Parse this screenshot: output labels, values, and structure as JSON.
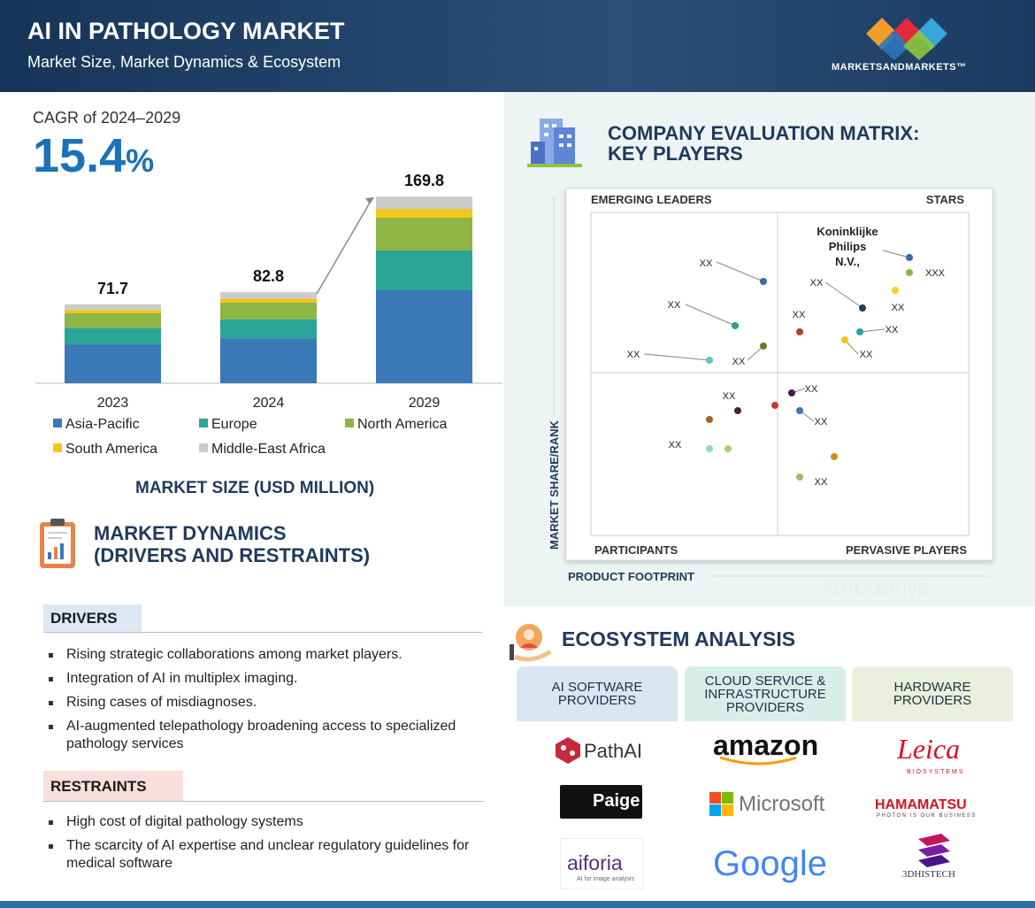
{
  "header": {
    "title": "AI IN PATHOLOGY MARKET",
    "subtitle": "Market Size, Market Dynamics & Ecosystem",
    "brand": "MARKETSANDMARKETS™"
  },
  "cagr": {
    "label": "CAGR of 2024–2029",
    "value": "15.4",
    "unit": "%"
  },
  "chart_data": {
    "type": "stacked-bar",
    "categories": [
      "2023",
      "2024",
      "2029"
    ],
    "totals": [
      71.7,
      82.8,
      169.8
    ],
    "series": [
      {
        "name": "Asia-Pacific",
        "color": "#3a78b8",
        "values": [
          35.0,
          40.6,
          84.5
        ]
      },
      {
        "name": "Europe",
        "color": "#2aa596",
        "values": [
          15.2,
          17.6,
          36.2
        ]
      },
      {
        "name": "North America",
        "color": "#8fb544",
        "values": [
          13.4,
          15.1,
          29.8
        ]
      },
      {
        "name": "South America",
        "color": "#f5c518",
        "values": [
          3.1,
          3.5,
          8.0
        ]
      },
      {
        "name": "Middle-East Africa",
        "color": "#cccccc",
        "values": [
          5.0,
          6.0,
          11.3
        ]
      }
    ],
    "xlabel": "MARKET SIZE (USD MILLION)"
  },
  "dynamics": {
    "title": [
      "MARKET DYNAMICS",
      "(DRIVERS AND RESTRAINTS)"
    ],
    "drivers": {
      "title": "DRIVERS",
      "items": [
        "Rising strategic collaborations among market players.",
        "Integration of AI in multiplex imaging.",
        "Rising cases of misdiagnoses.",
        "AI-augmented telepathology broadening access to specialized pathology services"
      ]
    },
    "restraints": {
      "title": "RESTRAINTS",
      "items": [
        "High cost of digital pathology systems",
        "The scarcity of AI expertise and unclear regulatory guidelines for medical software"
      ]
    }
  },
  "matrix": {
    "title": [
      "COMPANY EVALUATION MATRIX:",
      "KEY PLAYERS"
    ],
    "quadrants": [
      "EMERGING LEADERS",
      "STARS",
      "PARTICIPANTS",
      "PERVASIVE PLAYERS"
    ],
    "ylabel": "MARKET SHARE/RANK",
    "xlabel": "PRODUCT FOOTPRINT",
    "watermark": "AUTOMOTIVE",
    "labels": [
      "XX",
      "XX",
      "XX",
      "XX",
      "Koninklijke",
      "Philips",
      "N.V.,",
      "XXX",
      "XX",
      "XX",
      "XX",
      "XX",
      "XX",
      "XX",
      "XX",
      "XX",
      "XX",
      "XX"
    ]
  },
  "ecosystem": {
    "title": "ECOSYSTEM ANALYSIS",
    "columns": [
      {
        "title": [
          "AI SOFTWARE",
          "PROVIDERS"
        ],
        "logos": [
          "PathAI",
          "Paige",
          "aiforia",
          "AI for image analysis"
        ]
      },
      {
        "title": [
          "CLOUD SERVICE &",
          "INFRASTRUCTURE",
          "PROVIDERS"
        ],
        "logos": [
          "amazon",
          "Microsoft",
          "Google"
        ]
      },
      {
        "title": [
          "HARDWARE",
          "PROVIDERS"
        ],
        "logos": [
          "Leica",
          "BIOSYSTEMS",
          "HAMAMATSU",
          "PHOTON IS OUR BUSINESS",
          "3DHISTECH"
        ]
      }
    ]
  }
}
